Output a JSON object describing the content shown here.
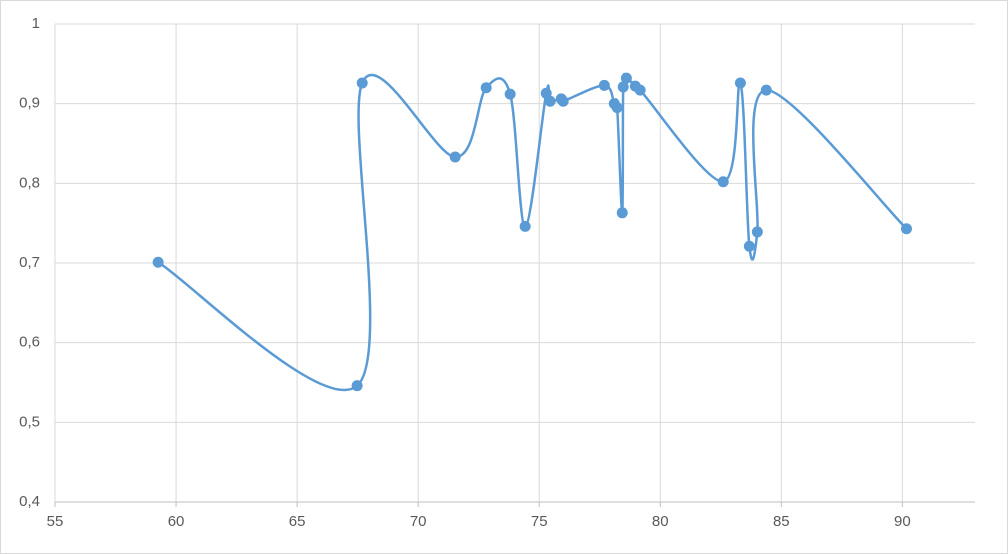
{
  "chart_data": {
    "type": "scatter",
    "x": [
      59.26,
      67.48,
      67.69,
      71.53,
      72.81,
      73.8,
      74.42,
      75.29,
      75.45,
      75.91,
      75.99,
      77.69,
      78.1,
      78.22,
      78.43,
      78.47,
      78.6,
      78.97,
      79.17,
      82.6,
      83.31,
      83.68,
      84.01,
      84.38,
      90.17
    ],
    "series": [
      {
        "color": "#5b9bd5",
        "smooth": true,
        "values": [
          0.701,
          0.546,
          0.926,
          0.833,
          0.92,
          0.912,
          0.746,
          0.913,
          0.903,
          0.906,
          0.903,
          0.923,
          0.9,
          0.895,
          0.763,
          0.921,
          0.932,
          0.922,
          0.917,
          0.802,
          0.926,
          0.721,
          0.739,
          0.917,
          0.743
        ]
      }
    ],
    "xlim": [
      55,
      93
    ],
    "xticks": [
      55,
      60,
      65,
      70,
      75,
      80,
      85,
      90
    ],
    "ylim": [
      0.4,
      1
    ],
    "yticks": [
      {
        "value": 0.4,
        "label": "0,4"
      },
      {
        "value": 0.5,
        "label": "0,5"
      },
      {
        "value": 0.6,
        "label": "0,6"
      },
      {
        "value": 0.7,
        "label": "0,7"
      },
      {
        "value": 0.8,
        "label": "0,8"
      },
      {
        "value": 0.9,
        "label": "0,9"
      },
      1
    ],
    "grid": true
  }
}
